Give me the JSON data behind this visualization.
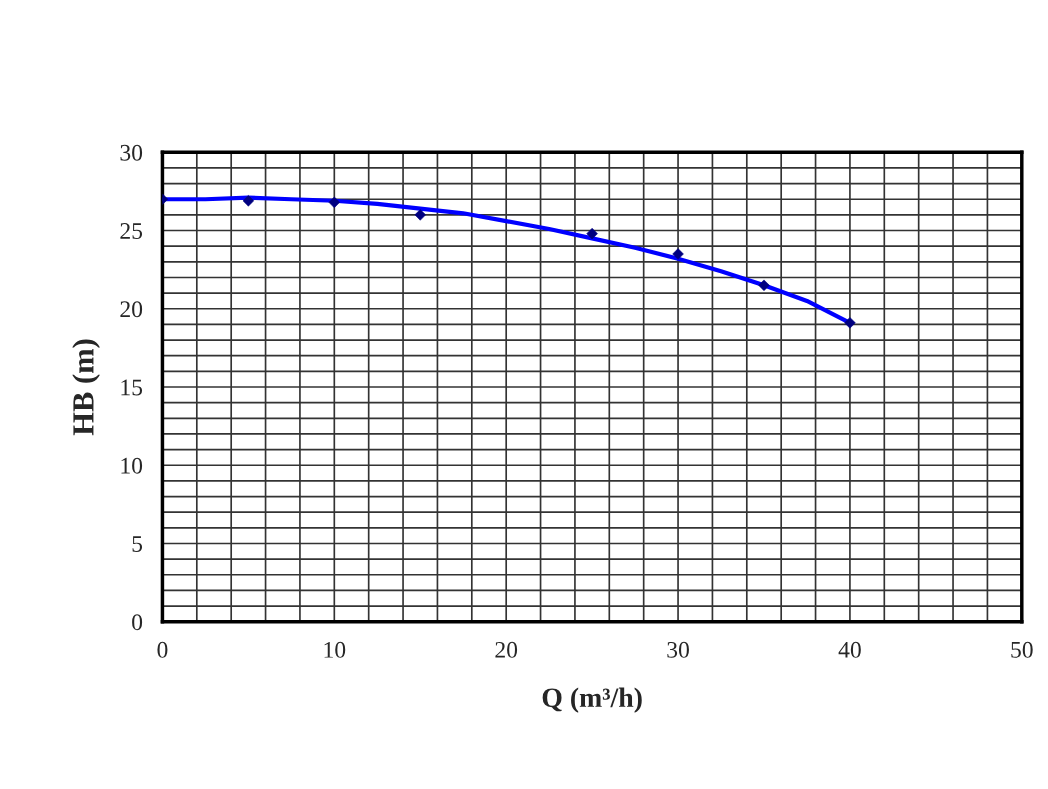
{
  "chart_data": {
    "type": "scatter",
    "xlabel": "Q (m³/h)",
    "ylabel": "HB (m)",
    "xlim": [
      0,
      50
    ],
    "xticks": [
      0,
      10,
      20,
      30,
      40,
      50
    ],
    "ylim": [
      0,
      30
    ],
    "yticks": [
      0,
      5,
      10,
      15,
      20,
      25,
      30
    ],
    "grid": true,
    "legend": false,
    "series": [
      {
        "color": "#000080",
        "marker": "diamond",
        "x": [
          0,
          5,
          10,
          15,
          25,
          30,
          35,
          40
        ],
        "values": [
          27.0,
          26.9,
          26.8,
          26.0,
          24.8,
          23.5,
          21.5,
          19.1
        ]
      },
      {
        "type": "line",
        "color": "#0000ff",
        "marker": "none",
        "line_style": "solid",
        "x": [
          0,
          2.5,
          5,
          7.5,
          10,
          12.5,
          15,
          17.5,
          20,
          22.5,
          25,
          27.5,
          30,
          32.5,
          35,
          37.5,
          40
        ],
        "values": [
          27.0,
          27.0,
          27.1,
          27.0,
          26.9,
          26.7,
          26.4,
          26.1,
          25.6,
          25.1,
          24.5,
          23.9,
          23.2,
          22.4,
          21.5,
          20.5,
          19.1
        ]
      }
    ]
  }
}
